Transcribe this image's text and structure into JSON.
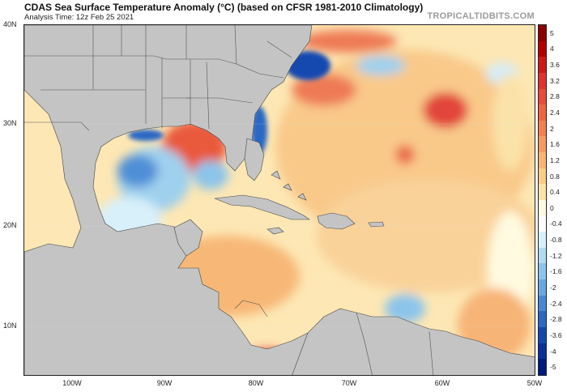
{
  "header": {
    "title": "CDAS Sea Surface Temperature Anomaly (°C) (based on CFSR 1981-2010 Climatology)",
    "subtitle": "Analysis Time: 12z Feb 25 2021",
    "credit": "TROPICALTIDBITS.COM"
  },
  "map": {
    "lat_labels": [
      "40N",
      "30N",
      "20N",
      "10N"
    ],
    "lon_labels": [
      "100W",
      "90W",
      "80W",
      "70W",
      "60W",
      "50W"
    ],
    "extent": {
      "west": -105,
      "east": -50,
      "south": 5,
      "north": 40
    }
  },
  "colorbar": {
    "labels": [
      "5",
      "4",
      "3.6",
      "3.2",
      "2.8",
      "2.4",
      "2",
      "1.6",
      "1.2",
      "0.8",
      "0.4",
      "0",
      "-0.4",
      "-0.8",
      "-1.2",
      "-1.6",
      "-2",
      "-2.4",
      "-2.8",
      "-3.6",
      "-4",
      "-5"
    ],
    "colors": [
      "#8b0000",
      "#b30000",
      "#cc1a1a",
      "#dd3333",
      "#e64d3b",
      "#ee6644",
      "#f28050",
      "#f59a60",
      "#f7b472",
      "#f9cc88",
      "#fbe2a8",
      "#fffae0",
      "#ffffff",
      "#d8f0fa",
      "#b0dcf2",
      "#8cc4ea",
      "#68a8e0",
      "#4888d4",
      "#2c68c4",
      "#1448b0",
      "#08309a",
      "#001a80"
    ]
  },
  "colors": {
    "ocean_base": "#fde7b4",
    "land": "#c4c4c4",
    "border": "#222222"
  }
}
